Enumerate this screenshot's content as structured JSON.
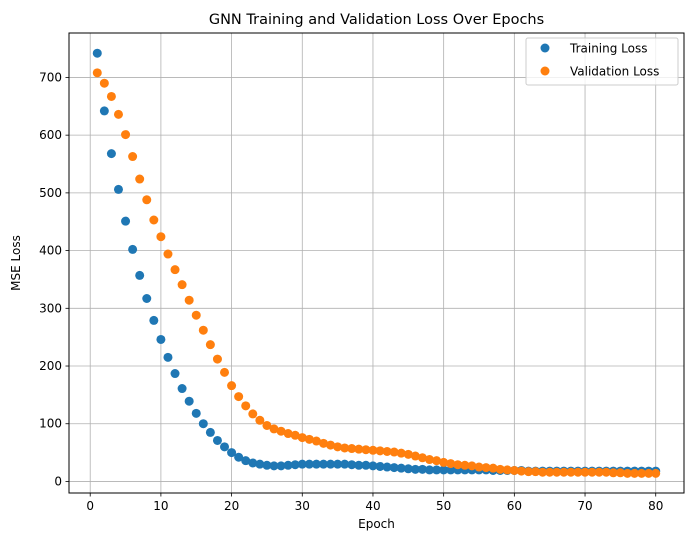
{
  "chart_data": {
    "type": "scatter",
    "title": "GNN Training and Validation Loss Over Epochs",
    "xlabel": "Epoch",
    "ylabel": "MSE Loss",
    "xlim": [
      -3,
      84
    ],
    "ylim": [
      -20,
      777
    ],
    "xticks": [
      0,
      10,
      20,
      30,
      40,
      50,
      60,
      70,
      80
    ],
    "yticks": [
      0,
      100,
      200,
      300,
      400,
      500,
      600,
      700
    ],
    "grid": true,
    "legend_position": "top-right",
    "series": [
      {
        "name": "Training Loss",
        "color": "#1f77b4",
        "x": [
          1,
          2,
          3,
          4,
          5,
          6,
          7,
          8,
          9,
          10,
          11,
          12,
          13,
          14,
          15,
          16,
          17,
          18,
          19,
          20,
          21,
          22,
          23,
          24,
          25,
          26,
          27,
          28,
          29,
          30,
          31,
          32,
          33,
          34,
          35,
          36,
          37,
          38,
          39,
          40,
          41,
          42,
          43,
          44,
          45,
          46,
          47,
          48,
          49,
          50,
          51,
          52,
          53,
          54,
          55,
          56,
          57,
          58,
          59,
          60,
          61,
          62,
          63,
          64,
          65,
          66,
          67,
          68,
          69,
          70,
          71,
          72,
          73,
          74,
          75,
          76,
          77,
          78,
          79,
          80
        ],
        "y": [
          742,
          642,
          568,
          506,
          451,
          402,
          357,
          317,
          279,
          246,
          215,
          187,
          161,
          139,
          118,
          100,
          85,
          71,
          60,
          50,
          42,
          36,
          32,
          30,
          28,
          27,
          27,
          28,
          29,
          30,
          30,
          30,
          30,
          30,
          30,
          30,
          29,
          28,
          28,
          27,
          26,
          25,
          24,
          23,
          22,
          21,
          21,
          20,
          20,
          20,
          20,
          20,
          20,
          20,
          20,
          20,
          19,
          19,
          19,
          19,
          19,
          18,
          18,
          18,
          18,
          18,
          18,
          18,
          18,
          18,
          18,
          18,
          18,
          18,
          18,
          18,
          18,
          18,
          18,
          18
        ]
      },
      {
        "name": "Validation Loss",
        "color": "#ff7f0e",
        "x": [
          1,
          2,
          3,
          4,
          5,
          6,
          7,
          8,
          9,
          10,
          11,
          12,
          13,
          14,
          15,
          16,
          17,
          18,
          19,
          20,
          21,
          22,
          23,
          24,
          25,
          26,
          27,
          28,
          29,
          30,
          31,
          32,
          33,
          34,
          35,
          36,
          37,
          38,
          39,
          40,
          41,
          42,
          43,
          44,
          45,
          46,
          47,
          48,
          49,
          50,
          51,
          52,
          53,
          54,
          55,
          56,
          57,
          58,
          59,
          60,
          61,
          62,
          63,
          64,
          65,
          66,
          67,
          68,
          69,
          70,
          71,
          72,
          73,
          74,
          75,
          76,
          77,
          78,
          79,
          80
        ],
        "y": [
          708,
          690,
          667,
          636,
          601,
          563,
          524,
          488,
          453,
          424,
          394,
          367,
          341,
          314,
          288,
          262,
          237,
          212,
          189,
          166,
          147,
          131,
          117,
          106,
          97,
          91,
          87,
          83,
          80,
          76,
          73,
          70,
          66,
          63,
          60,
          58,
          57,
          56,
          55,
          54,
          53,
          52,
          51,
          49,
          47,
          44,
          41,
          38,
          36,
          33,
          31,
          29,
          28,
          27,
          25,
          24,
          23,
          21,
          20,
          19,
          18,
          17,
          17,
          16,
          16,
          16,
          16,
          16,
          16,
          16,
          16,
          16,
          16,
          15,
          15,
          14,
          14,
          14,
          14,
          14
        ]
      }
    ]
  }
}
